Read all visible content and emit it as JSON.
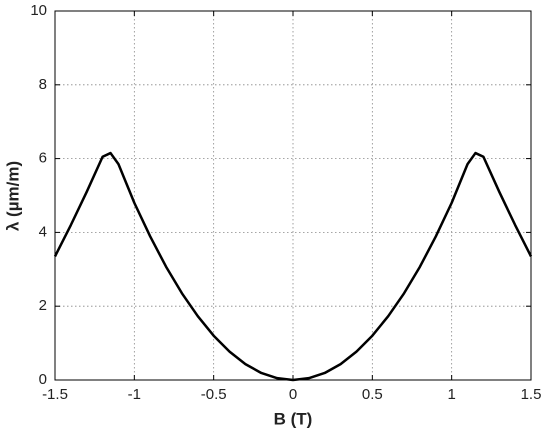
{
  "chart_data": {
    "type": "line",
    "x_label": "B (T)",
    "y_label": "λ (µm/m)",
    "x": [
      -1.5,
      -1.4,
      -1.3,
      -1.2,
      -1.15,
      -1.1,
      -1,
      -0.9,
      -0.8,
      -0.7,
      -0.6,
      -0.5,
      -0.4,
      -0.3,
      -0.2,
      -0.1,
      0,
      0.1,
      0.2,
      0.3,
      0.4,
      0.5,
      0.6,
      0.7,
      0.8,
      0.9,
      1,
      1.1,
      1.15,
      1.2,
      1.3,
      1.4,
      1.5
    ],
    "series": [
      {
        "color": "#000000",
        "values": [
          3.35,
          4.2,
          5.1,
          6.05,
          6.15,
          5.85,
          4.8,
          3.89,
          3.07,
          2.35,
          1.73,
          1.2,
          0.77,
          0.43,
          0.19,
          0.05,
          0,
          0.05,
          0.19,
          0.43,
          0.77,
          1.2,
          1.73,
          2.35,
          3.07,
          3.89,
          4.8,
          5.85,
          6.15,
          6.05,
          5.1,
          4.2,
          3.35
        ]
      }
    ],
    "xlim": [
      -1.5,
      1.5
    ],
    "xticks": [
      -1.5,
      -1,
      -0.5,
      0,
      0.5,
      1,
      1.5
    ],
    "ylim": [
      0,
      10
    ],
    "yticks": [
      0,
      2,
      4,
      6,
      8,
      10
    ],
    "grid": true
  }
}
